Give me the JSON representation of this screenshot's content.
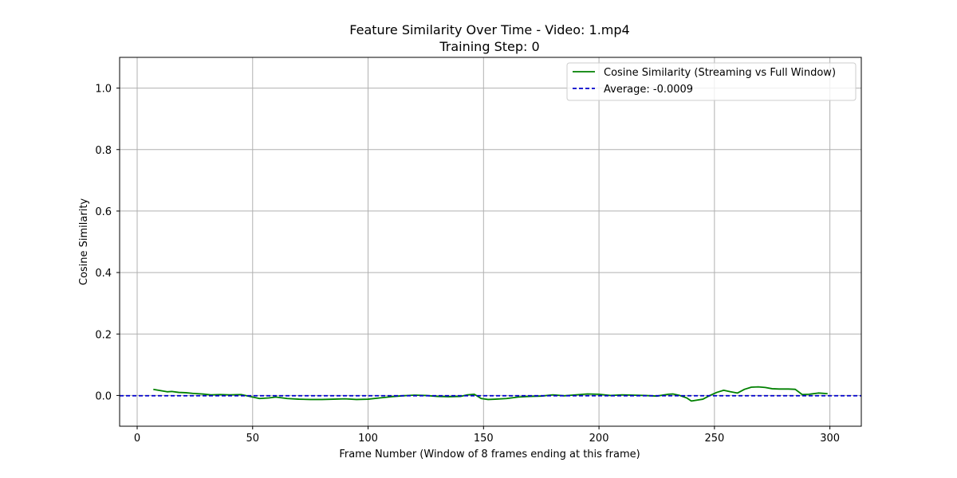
{
  "chart_data": {
    "type": "line",
    "title": "Feature Similarity Over Time - Video: 1.mp4",
    "subtitle": "Training Step: 0",
    "xlabel": "Frame Number (Window of 8 frames ending at this frame)",
    "ylabel": "Cosine Similarity",
    "xlim": [
      -7.6,
      313.6
    ],
    "ylim": [
      -0.1,
      1.1
    ],
    "xticks": [
      0,
      50,
      100,
      150,
      200,
      250,
      300
    ],
    "yticks": [
      0.0,
      0.2,
      0.4,
      0.6,
      0.8,
      1.0
    ],
    "xtick_labels": [
      "0",
      "50",
      "100",
      "150",
      "200",
      "250",
      "300"
    ],
    "ytick_labels": [
      "0.0",
      "0.2",
      "0.4",
      "0.6",
      "0.8",
      "1.0"
    ],
    "grid": true,
    "legend_position": "top-right",
    "series": [
      {
        "name": "Cosine Similarity (Streaming vs Full Window)",
        "color": "#008000",
        "style": "solid",
        "x": [
          7,
          10,
          13,
          15,
          18,
          21,
          24,
          28,
          32,
          36,
          40,
          45,
          50,
          53,
          57,
          60,
          65,
          70,
          75,
          80,
          85,
          90,
          95,
          100,
          105,
          110,
          115,
          120,
          125,
          130,
          135,
          140,
          143,
          146,
          149,
          152,
          155,
          160,
          165,
          170,
          175,
          180,
          185,
          190,
          195,
          200,
          205,
          210,
          215,
          220,
          225,
          230,
          232,
          235,
          238,
          240,
          245,
          248,
          251,
          254,
          257,
          260,
          263,
          266,
          269,
          272,
          275,
          278,
          282,
          285,
          288,
          291,
          295,
          299
        ],
        "y": [
          0.02,
          0.016,
          0.012,
          0.013,
          0.01,
          0.009,
          0.007,
          0.005,
          0.002,
          0.003,
          0.002,
          0.003,
          -0.005,
          -0.01,
          -0.008,
          -0.005,
          -0.01,
          -0.012,
          -0.013,
          -0.013,
          -0.012,
          -0.011,
          -0.013,
          -0.012,
          -0.008,
          -0.004,
          -0.001,
          0.001,
          0.0,
          -0.003,
          -0.004,
          -0.003,
          0.002,
          0.004,
          -0.01,
          -0.013,
          -0.012,
          -0.01,
          -0.005,
          -0.003,
          -0.002,
          0.002,
          -0.001,
          0.002,
          0.005,
          0.004,
          0.0,
          0.002,
          0.001,
          0.0,
          -0.002,
          0.004,
          0.005,
          0.0,
          -0.008,
          -0.018,
          -0.012,
          0.0,
          0.01,
          0.017,
          0.012,
          0.008,
          0.02,
          0.027,
          0.028,
          0.026,
          0.022,
          0.021,
          0.021,
          0.02,
          0.003,
          0.004,
          0.008,
          0.006
        ]
      },
      {
        "name": "Average: -0.0009",
        "color": "#0000cc",
        "style": "dashed",
        "x": [
          -7.6,
          313.6
        ],
        "y": [
          -0.0009,
          -0.0009
        ]
      }
    ]
  },
  "colors": {
    "grid": "#b0b0b0",
    "axes": "#000000",
    "background": "#ffffff"
  }
}
